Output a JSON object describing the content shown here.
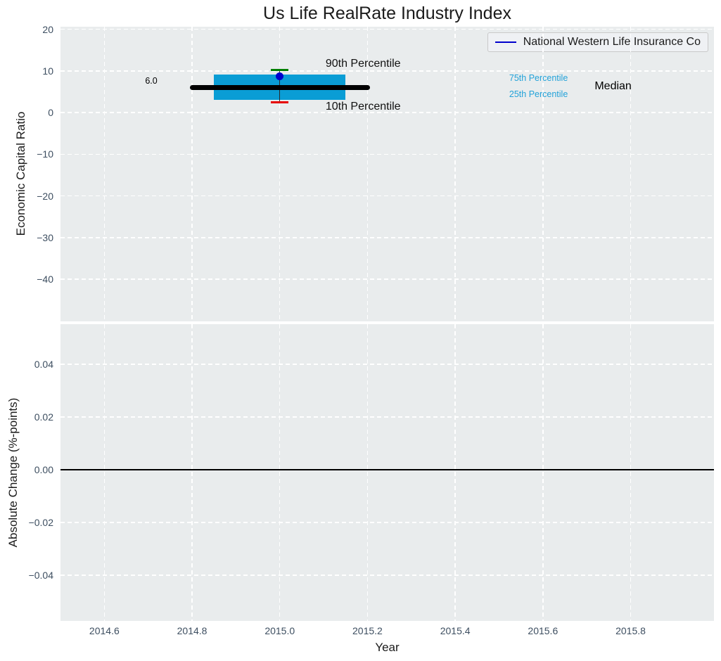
{
  "figure": {
    "background": "#ffffff",
    "plot_background": "#e9eced",
    "grid_color": "#ffffff",
    "tick_color": "#3d4e60",
    "text_color": "#1b1b1b"
  },
  "chart_data": [
    {
      "type": "box",
      "title": "Us Life RealRate Industry Index",
      "ylabel": "Economic Capital Ratio",
      "xlabel": "",
      "xlim": [
        2014.5,
        2015.99
      ],
      "ylim": [
        -50.1,
        20.6
      ],
      "grid": true,
      "yticks": [
        {
          "v": 20,
          "label": "20"
        },
        {
          "v": 10,
          "label": "10"
        },
        {
          "v": 0,
          "label": "0"
        },
        {
          "v": -10,
          "label": "−10"
        },
        {
          "v": -20,
          "label": "−20"
        },
        {
          "v": -30,
          "label": "−30"
        },
        {
          "v": -40,
          "label": "−40"
        }
      ],
      "xticks": [
        {
          "v": 2014.6,
          "label": "2014.6"
        },
        {
          "v": 2014.8,
          "label": "2014.8"
        },
        {
          "v": 2015.0,
          "label": "2015.0"
        },
        {
          "v": 2015.2,
          "label": "2015.2"
        },
        {
          "v": 2015.4,
          "label": "2015.4"
        },
        {
          "v": 2015.6,
          "label": "2015.6"
        },
        {
          "v": 2015.8,
          "label": "2015.8"
        }
      ],
      "legend": {
        "label": "National Western Life Insurance Co",
        "line_color": "#0000cc",
        "position": "upper right"
      },
      "box": {
        "x": 2015.0,
        "median": 6.0,
        "q1": 3.0,
        "q3": 9.1,
        "p10": 2.5,
        "p90": 10.3,
        "company_point": 8.7,
        "box_half_width": 0.15,
        "median_half_width": 0.2,
        "cap_half_width": 0.02,
        "box_color": "#0a9dd5",
        "median_color": "#000000",
        "p90_color": "#008000",
        "p10_color": "#e60000",
        "point_color": "#0000cc",
        "whisker_color": "#2a2a2a"
      },
      "annotations": [
        {
          "text": "6.0",
          "x": 2014.707,
          "y": 7.5,
          "color": "#000000",
          "size": 12.5
        },
        {
          "text": "90th Percentile",
          "x": 2015.19,
          "y": 11.7,
          "color": "#111111",
          "size": 16
        },
        {
          "text": "10th Percentile",
          "x": 2015.19,
          "y": 1.4,
          "color": "#111111",
          "size": 16
        },
        {
          "text": "75th Percentile",
          "x": 2015.59,
          "y": 8.1,
          "color": "#22a2d9",
          "size": 12.5
        },
        {
          "text": "25th Percentile",
          "x": 2015.59,
          "y": 4.3,
          "color": "#22a2d9",
          "size": 12.5
        },
        {
          "text": "Median",
          "x": 2015.76,
          "y": 6.2,
          "color": "#000000",
          "size": 16
        }
      ]
    },
    {
      "type": "line",
      "ylabel": "Absolute Change (%-points)",
      "xlabel": "Year",
      "xlim": [
        2014.5,
        2015.99
      ],
      "ylim": [
        -0.0573,
        0.0552
      ],
      "grid": true,
      "yticks": [
        {
          "v": 0.04,
          "label": "0.04"
        },
        {
          "v": 0.02,
          "label": "0.02"
        },
        {
          "v": 0.0,
          "label": "0.00"
        },
        {
          "v": -0.02,
          "label": "−0.02"
        },
        {
          "v": -0.04,
          "label": "−0.04"
        }
      ],
      "xticks": [
        {
          "v": 2014.6,
          "label": "2014.6"
        },
        {
          "v": 2014.8,
          "label": "2014.8"
        },
        {
          "v": 2015.0,
          "label": "2015.0"
        },
        {
          "v": 2015.2,
          "label": "2015.2"
        },
        {
          "v": 2015.4,
          "label": "2015.4"
        },
        {
          "v": 2015.6,
          "label": "2015.6"
        },
        {
          "v": 2015.8,
          "label": "2015.8"
        }
      ],
      "zero_line": {
        "y": 0.0,
        "color": "#000000"
      }
    }
  ]
}
